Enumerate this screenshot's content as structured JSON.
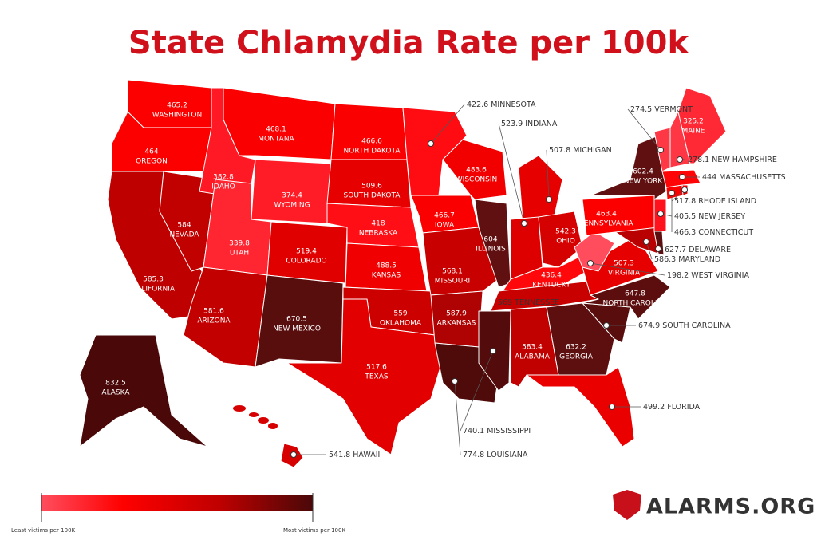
{
  "title": "State Chlamydia Rate per 100k",
  "states": [
    {
      "name": "WASHINGTON",
      "value": 465.2
    },
    {
      "name": "OREGON",
      "value": 464
    },
    {
      "name": "CALIFORNIA",
      "value": 585.3
    },
    {
      "name": "NEVADA",
      "value": 584
    },
    {
      "name": "IDAHO",
      "value": 382.8
    },
    {
      "name": "MONTANA",
      "value": 468.1
    },
    {
      "name": "WYOMING",
      "value": 374.4
    },
    {
      "name": "UTAH",
      "value": 339.8
    },
    {
      "name": "ARIZONA",
      "value": 581.6
    },
    {
      "name": "COLORADO",
      "value": 519.4
    },
    {
      "name": "NEW MEXICO",
      "value": 670.5
    },
    {
      "name": "NORTH DAKOTA",
      "value": 466.6
    },
    {
      "name": "SOUTH DAKOTA",
      "value": 509.6
    },
    {
      "name": "NEBRASKA",
      "value": 418
    },
    {
      "name": "KANSAS",
      "value": 488.5
    },
    {
      "name": "OKLAHOMA",
      "value": 559
    },
    {
      "name": "TEXAS",
      "value": 517.6
    },
    {
      "name": "MINNESOTA",
      "value": 422.6
    },
    {
      "name": "IOWA",
      "value": 466.7
    },
    {
      "name": "MISSOURI",
      "value": 568.1
    },
    {
      "name": "ARKANSAS",
      "value": 587.9
    },
    {
      "name": "LOUISIANA",
      "value": 774.8
    },
    {
      "name": "WISCONSIN",
      "value": 483.6
    },
    {
      "name": "ILLINOIS",
      "value": 604
    },
    {
      "name": "MICHIGAN",
      "value": 507.8
    },
    {
      "name": "INDIANA",
      "value": 523.9
    },
    {
      "name": "OHIO",
      "value": 542.3
    },
    {
      "name": "KENTUCKY",
      "value": 436.4
    },
    {
      "name": "TENNESSEE",
      "value": 569
    },
    {
      "name": "MISSISSIPPI",
      "value": 740.1
    },
    {
      "name": "ALABAMA",
      "value": 583.4
    },
    {
      "name": "GEORGIA",
      "value": 632.2
    },
    {
      "name": "FLORIDA",
      "value": 499.2
    },
    {
      "name": "SOUTH CAROLINA",
      "value": 674.9
    },
    {
      "name": "NORTH CAROLINA",
      "value": 647.8
    },
    {
      "name": "VIRGINIA",
      "value": 507.3
    },
    {
      "name": "WEST VIRGINIA",
      "value": 198.2
    },
    {
      "name": "MARYLAND",
      "value": 586.3
    },
    {
      "name": "DELAWARE",
      "value": 627.7
    },
    {
      "name": "PENNSYLVANIA",
      "value": 463.4
    },
    {
      "name": "NEW YORK",
      "value": 602.4
    },
    {
      "name": "NEW JERSEY",
      "value": 405.5
    },
    {
      "name": "CONNECTICUT",
      "value": 466.3
    },
    {
      "name": "RHODE ISLAND",
      "value": 517.8
    },
    {
      "name": "MASSACHUSETTS",
      "value": 444
    },
    {
      "name": "VERMONT",
      "value": 274.5
    },
    {
      "name": "NEW HAMPSHIRE",
      "value": 278.1
    },
    {
      "name": "MAINE",
      "value": 325.2
    },
    {
      "name": "ALASKA",
      "value": 832.5
    },
    {
      "name": "HAWAII",
      "value": 541.8
    }
  ],
  "legend": {
    "low": "Least victims per 100K",
    "high": "Most victims per 100K"
  },
  "logo": "ALARMS.ORG"
}
